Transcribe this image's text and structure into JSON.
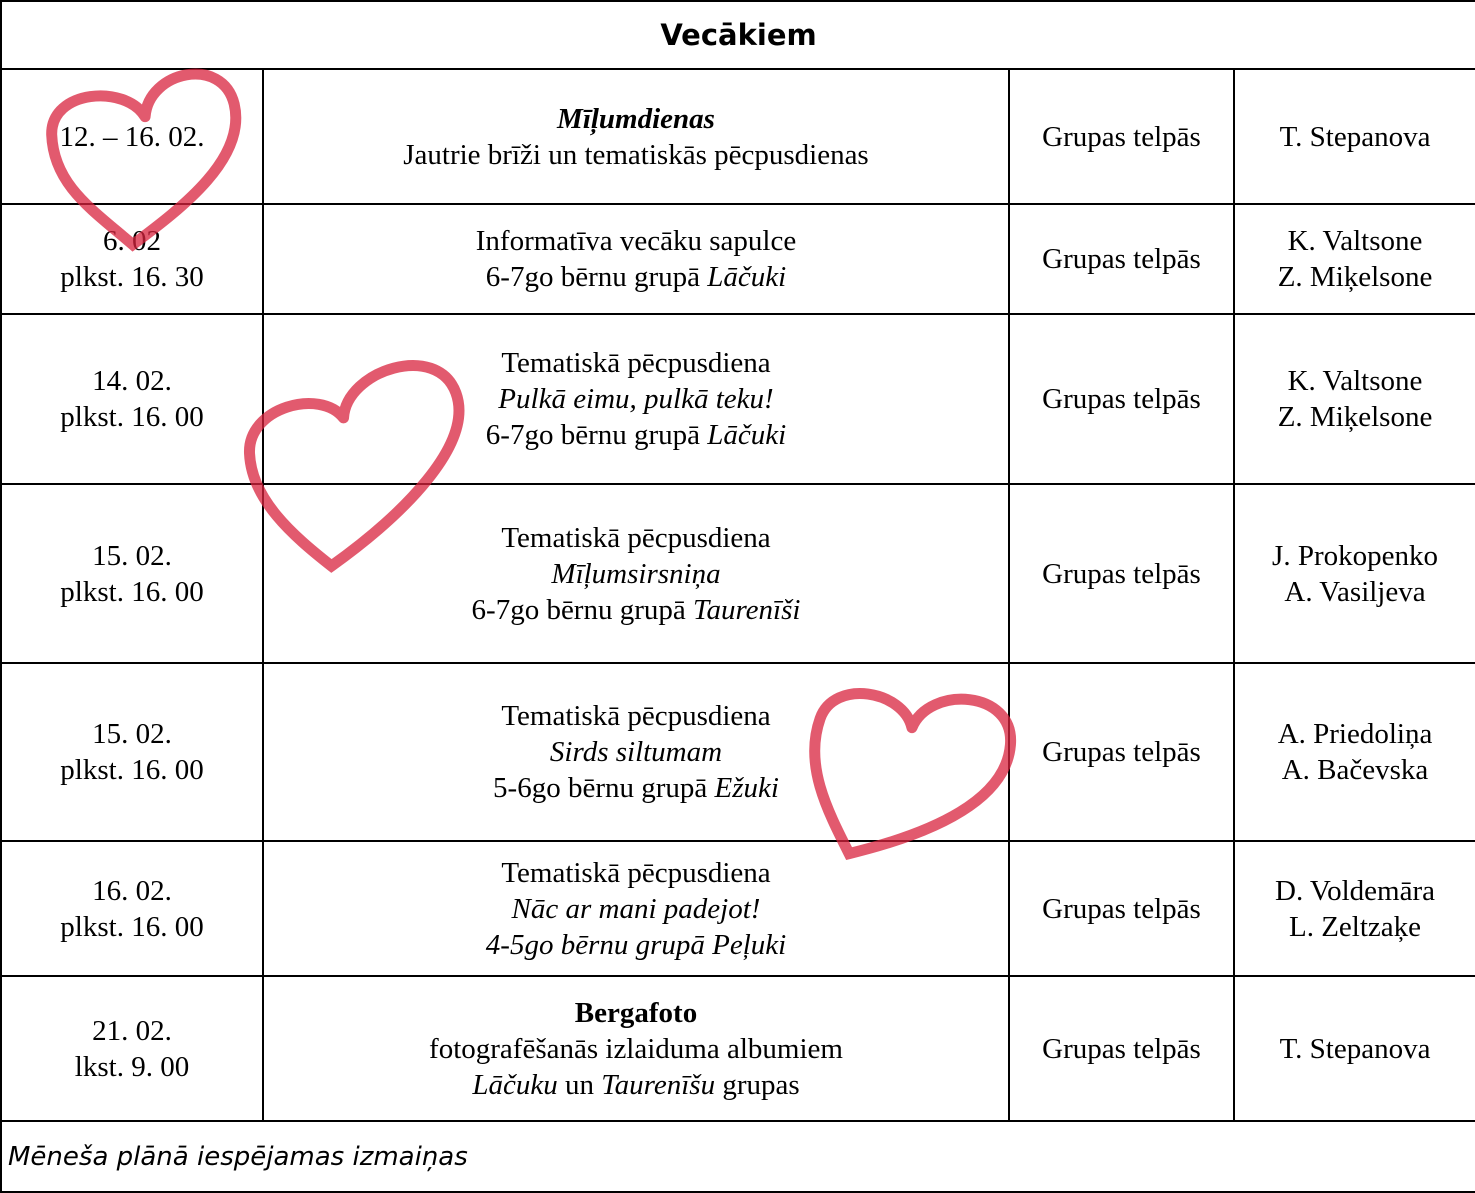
{
  "title": "Vecākiem",
  "rows": [
    {
      "date": [
        "12. – 16. 02."
      ],
      "event": [
        "Mīļumdienas",
        "Jautrie brīži un tematiskās pēcpusdienas"
      ],
      "place": "Grupas telpās",
      "people": [
        "T. Stepanova"
      ]
    },
    {
      "date": [
        "6. 02",
        "plkst. 16. 30"
      ],
      "event": [
        "Informatīva vecāku sapulce",
        [
          "6-7go bērnu grupā",
          "Lāčuki"
        ]
      ],
      "place": "Grupas telpās",
      "people": [
        "K. Valtsone",
        "Z. Miķelsone"
      ]
    },
    {
      "date": [
        "14. 02.",
        "plkst. 16. 00"
      ],
      "event": [
        "Tematiskā pēcpusdiena",
        "Pulkā eimu, pulkā teku!",
        [
          "6-7go bērnu grupā",
          "Lāčuki"
        ]
      ],
      "place": "Grupas telpās",
      "people": [
        "K. Valtsone",
        "Z. Miķelsone"
      ]
    },
    {
      "date": [
        "15. 02.",
        "plkst. 16. 00"
      ],
      "event": [
        "Tematiskā pēcpusdiena",
        "Mīļumsirsniņa",
        [
          "6-7go bērnu grupā",
          "Taurenīši"
        ]
      ],
      "place": "Grupas telpās",
      "people": [
        "J. Prokopenko",
        "A. Vasiljeva"
      ]
    },
    {
      "date": [
        "15. 02.",
        "plkst. 16. 00"
      ],
      "event": [
        "Tematiskā pēcpusdiena",
        "Sirds siltumam",
        [
          "5-6go bērnu grupā",
          "Ežuki"
        ]
      ],
      "place": "Grupas telpās",
      "people": [
        "A. Priedoliņa",
        "A. Bačevska"
      ]
    },
    {
      "date": [
        "16. 02.",
        "plkst. 16. 00"
      ],
      "event": [
        "Tematiskā pēcpusdiena",
        "Nāc ar mani padejot!",
        "4-5go bērnu grupā Peļuki"
      ],
      "place": "Grupas telpās",
      "people": [
        "D. Voldemāra",
        "L. Zeltzaķe"
      ]
    },
    {
      "date": [
        "21. 02.",
        "lkst. 9. 00"
      ],
      "event": [
        "Bergafoto",
        "fotografēšanās izlaiduma albumiem",
        [
          "Lāčuku",
          "un",
          "Taurenīšu",
          "grupas"
        ]
      ],
      "place": "Grupas telpās",
      "people": [
        "T. Stepanova"
      ]
    }
  ],
  "note": "Mēneša plānā iespējamas izmaiņas"
}
